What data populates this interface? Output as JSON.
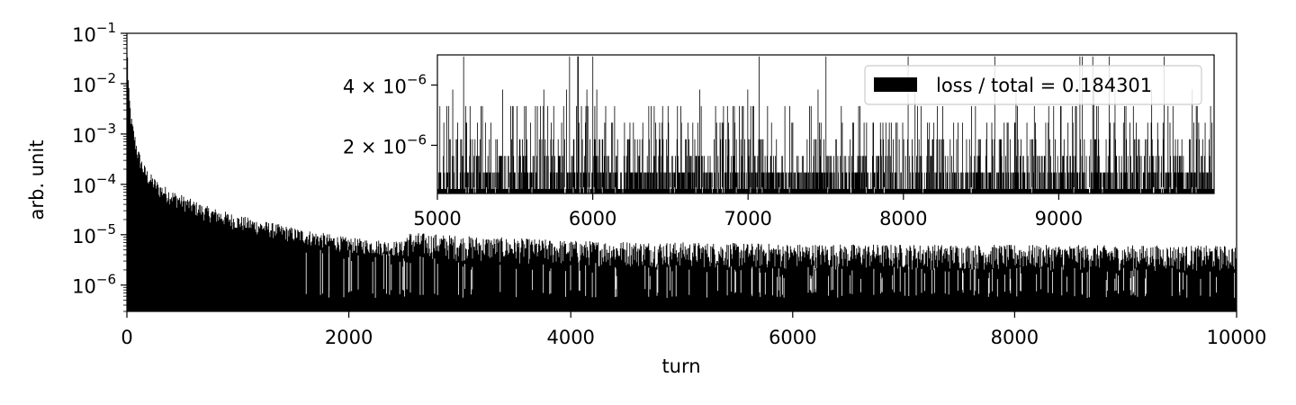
{
  "chart_data": [
    {
      "type": "bar",
      "role": "main",
      "xlabel": "turn",
      "ylabel": "arb. unit",
      "xlim": [
        0,
        10000
      ],
      "ylim": [
        3e-07,
        0.1
      ],
      "yscale": "log",
      "grid": false,
      "x_ticks": [
        "0",
        "2000",
        "4000",
        "6000",
        "8000",
        "10000"
      ],
      "y_ticks": [
        {
          "base": "10",
          "exp": "−1"
        },
        {
          "base": "10",
          "exp": "−2"
        },
        {
          "base": "10",
          "exp": "−3"
        },
        {
          "base": "10",
          "exp": "−4"
        },
        {
          "base": "10",
          "exp": "−5"
        },
        {
          "base": "10",
          "exp": "−6"
        }
      ],
      "envelope": {
        "x": [
          0,
          5,
          10,
          20,
          40,
          70,
          100,
          150,
          200,
          300,
          400,
          500,
          700,
          1000,
          1500,
          2000,
          3000,
          4000,
          6000,
          8000,
          10000
        ],
        "y": [
          0.08,
          0.04,
          0.01,
          0.004,
          0.0013,
          0.0006,
          0.0003,
          0.00015,
          0.0001,
          6e-05,
          4.5e-05,
          3.5e-05,
          2.2e-05,
          1.4e-05,
          8e-06,
          5e-06,
          3.5e-06,
          2.8e-06,
          2.4e-06,
          2.3e-06,
          2.2e-06
        ]
      },
      "series": [
        {
          "color": "#000000"
        }
      ]
    },
    {
      "type": "bar",
      "role": "inset",
      "xlim": [
        5000,
        10000
      ],
      "ylim": [
        4e-07,
        5e-06
      ],
      "x_ticks": [
        "5000",
        "6000",
        "7000",
        "8000",
        "9000"
      ],
      "y_ticks": [
        {
          "mant": "4",
          "base": "10",
          "exp": "−6"
        },
        {
          "mant": "2",
          "base": "10",
          "exp": "−6"
        }
      ],
      "levels": [
        5.5e-07,
        1.1e-06,
        1.65e-06,
        2.2e-06,
        2.75e-06,
        3.3e-06,
        3.85e-06,
        4.95e-06
      ],
      "level_probs": [
        0.36,
        0.3,
        0.15,
        0.09,
        0.05,
        0.03,
        0.015,
        0.005
      ],
      "legend": {
        "label": "loss / total = 0.184301",
        "placement": "top-right"
      },
      "series": [
        {
          "color": "#000000"
        }
      ]
    }
  ]
}
